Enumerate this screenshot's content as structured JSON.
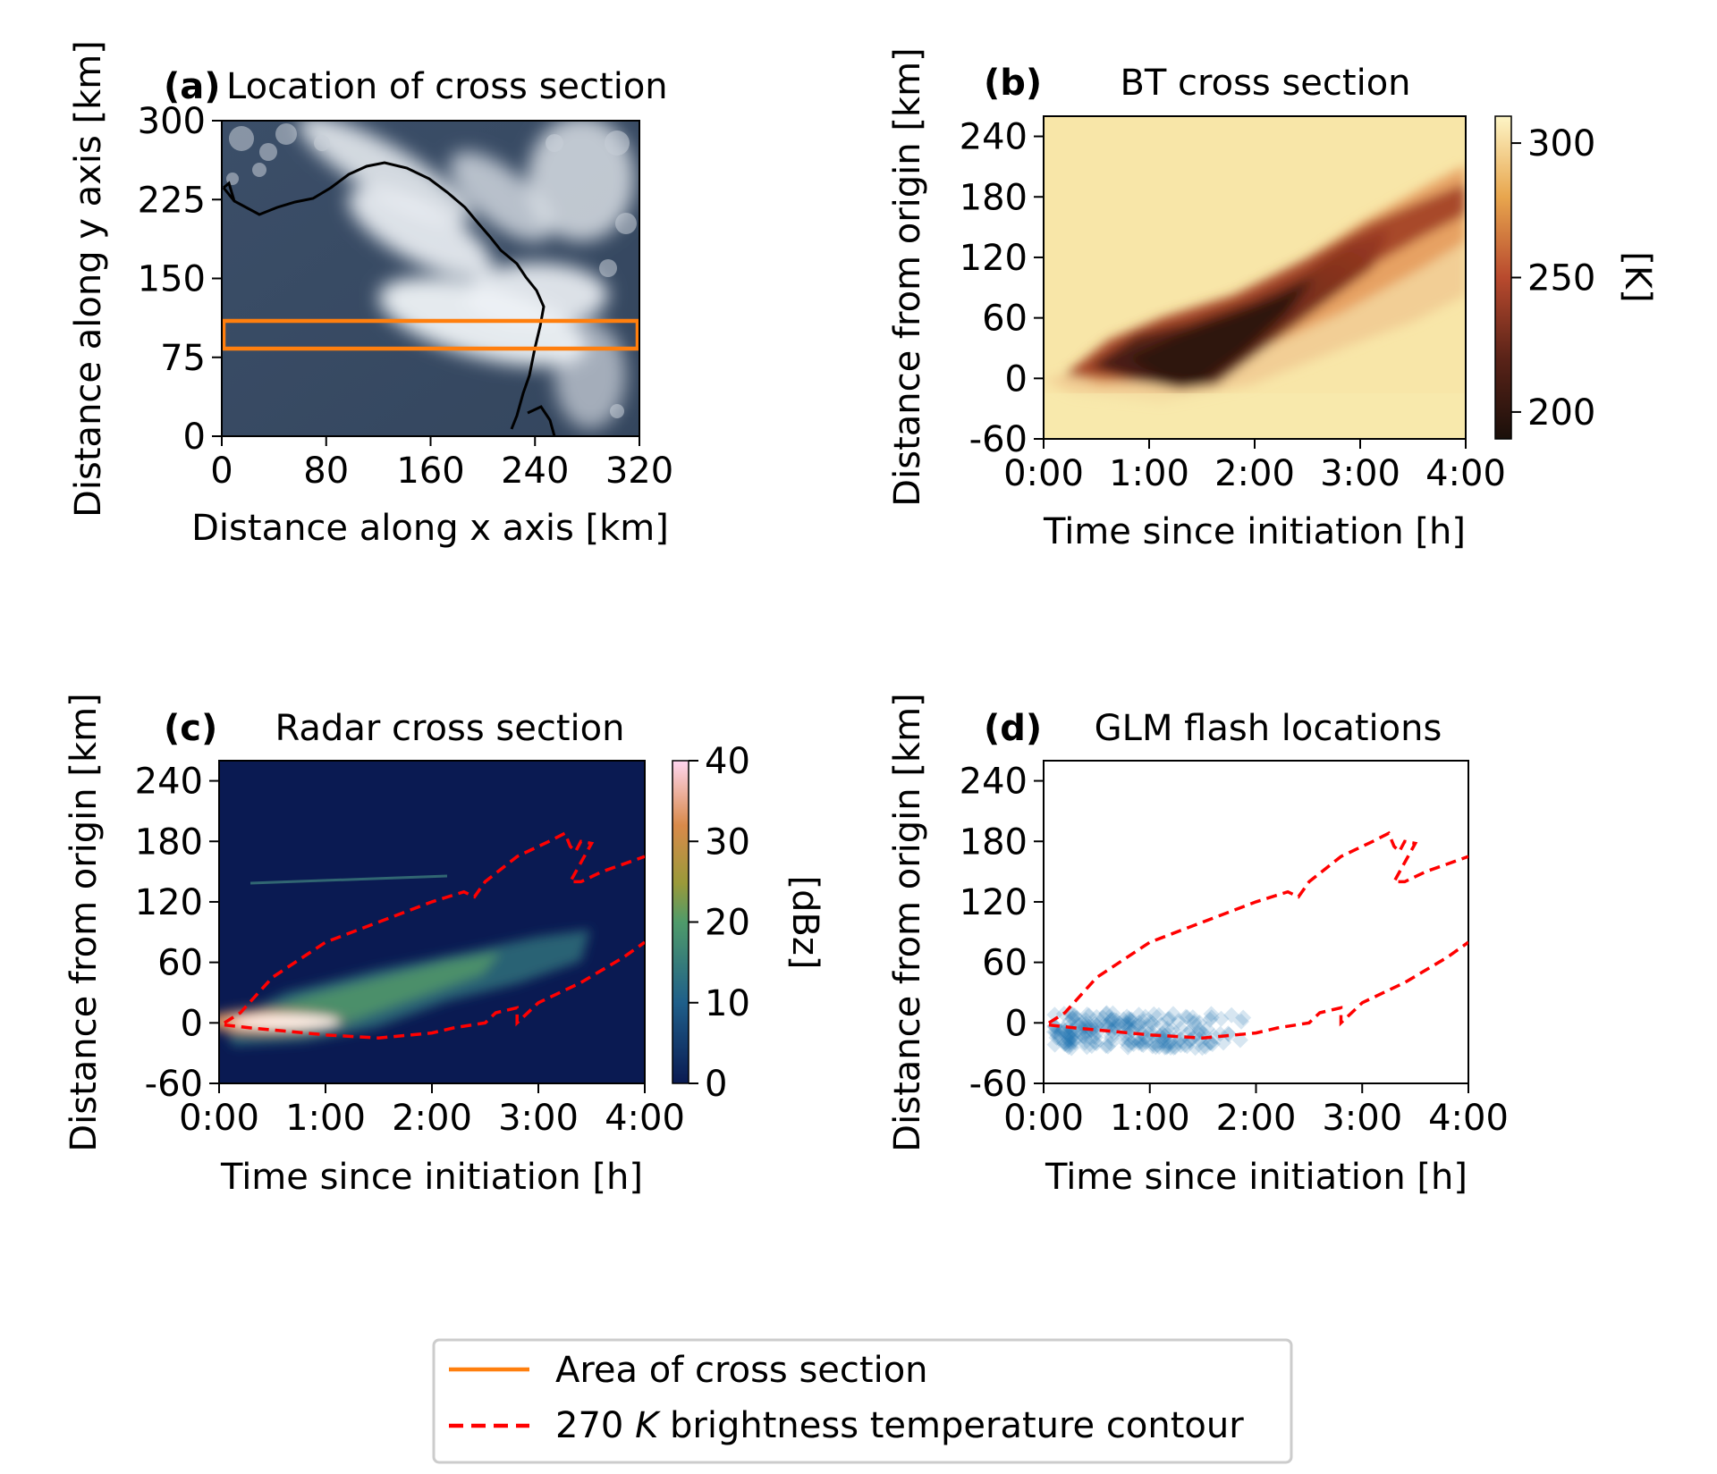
{
  "chart_data": [
    {
      "panel": "(a)",
      "type": "heatmap",
      "title": "Location of cross section",
      "xlabel": "Distance along x axis [km]",
      "ylabel": "Distance along y axis [km]",
      "xlim": [
        0,
        320
      ],
      "ylim": [
        0,
        300
      ],
      "xticks": [
        "0",
        "80",
        "160",
        "240",
        "320"
      ],
      "yticks": [
        "0",
        "75",
        "150",
        "225",
        "300"
      ],
      "image": "true-color satellite imagery with coastline",
      "rectangle": {
        "x": [
          0,
          316
        ],
        "y": [
          87,
          113
        ],
        "color": "#ff7f0e"
      }
    },
    {
      "panel": "(b)",
      "type": "heatmap",
      "title": "BT cross section",
      "xlabel": "Time since initiation [h]",
      "ylabel": "Distance from origin [km]",
      "xlim": [
        0,
        4
      ],
      "ylim": [
        -60,
        260
      ],
      "xticks": [
        "0:00",
        "1:00",
        "2:00",
        "3:00",
        "4:00"
      ],
      "yticks": [
        "-60",
        "0",
        "60",
        "120",
        "180",
        "240"
      ],
      "colorbar": {
        "label": "[K]",
        "range": [
          190,
          310
        ],
        "ticks": [
          "200",
          "250",
          "300"
        ]
      }
    },
    {
      "panel": "(c)",
      "type": "heatmap",
      "title": "Radar cross section",
      "xlabel": "Time since initiation [h]",
      "ylabel": "Distance from origin [km]",
      "xlim": [
        0,
        4
      ],
      "ylim": [
        -60,
        260
      ],
      "xticks": [
        "0:00",
        "1:00",
        "2:00",
        "3:00",
        "4:00"
      ],
      "yticks": [
        "-60",
        "0",
        "60",
        "120",
        "180",
        "240"
      ],
      "colorbar": {
        "label": "[dBz]",
        "range": [
          0,
          40
        ],
        "ticks": [
          "0",
          "10",
          "20",
          "30",
          "40"
        ]
      }
    },
    {
      "panel": "(d)",
      "type": "scatter",
      "title": "GLM flash locations",
      "xlabel": "Time since initiation [h]",
      "ylabel": "Distance from origin [km]",
      "xlim": [
        0,
        4
      ],
      "ylim": [
        -60,
        260
      ],
      "xticks": [
        "0:00",
        "1:00",
        "2:00",
        "3:00",
        "4:00"
      ],
      "yticks": [
        "-60",
        "0",
        "60",
        "120",
        "180",
        "240"
      ],
      "flash_cluster": {
        "t_range": [
          0.1,
          2.0
        ],
        "d_range": [
          -25,
          10
        ],
        "color": "#1f77b4"
      }
    }
  ],
  "contour_270K": {
    "upper": [
      [
        0.05,
        0
      ],
      [
        0.2,
        10
      ],
      [
        0.5,
        45
      ],
      [
        1.0,
        80
      ],
      [
        1.5,
        100
      ],
      [
        2.0,
        120
      ],
      [
        2.3,
        130
      ],
      [
        2.4,
        125
      ],
      [
        2.5,
        140
      ],
      [
        2.8,
        165
      ],
      [
        3.1,
        180
      ],
      [
        3.25,
        188
      ],
      [
        3.3,
        175
      ],
      [
        3.35,
        170
      ],
      [
        3.4,
        180
      ],
      [
        3.5,
        178
      ],
      [
        3.3,
        140
      ],
      [
        3.4,
        140
      ],
      [
        3.6,
        150
      ],
      [
        4.0,
        165
      ]
    ],
    "lower": [
      [
        0.05,
        -2
      ],
      [
        0.3,
        -5
      ],
      [
        0.6,
        -8
      ],
      [
        1.0,
        -12
      ],
      [
        1.5,
        -15
      ],
      [
        2.0,
        -10
      ],
      [
        2.2,
        -5
      ],
      [
        2.5,
        0
      ],
      [
        2.6,
        10
      ],
      [
        2.8,
        15
      ],
      [
        2.8,
        0
      ],
      [
        3.0,
        20
      ],
      [
        3.4,
        40
      ],
      [
        3.8,
        65
      ],
      [
        4.0,
        80
      ]
    ]
  },
  "legend": {
    "entries": [
      {
        "label": "Area of cross section",
        "style": "solid",
        "color": "#ff7f0e"
      },
      {
        "label_prefix": "270 ",
        "label_italic": "K",
        "label_suffix": " brightness temperature contour",
        "style": "dashed",
        "color": "#ff0000"
      }
    ]
  }
}
